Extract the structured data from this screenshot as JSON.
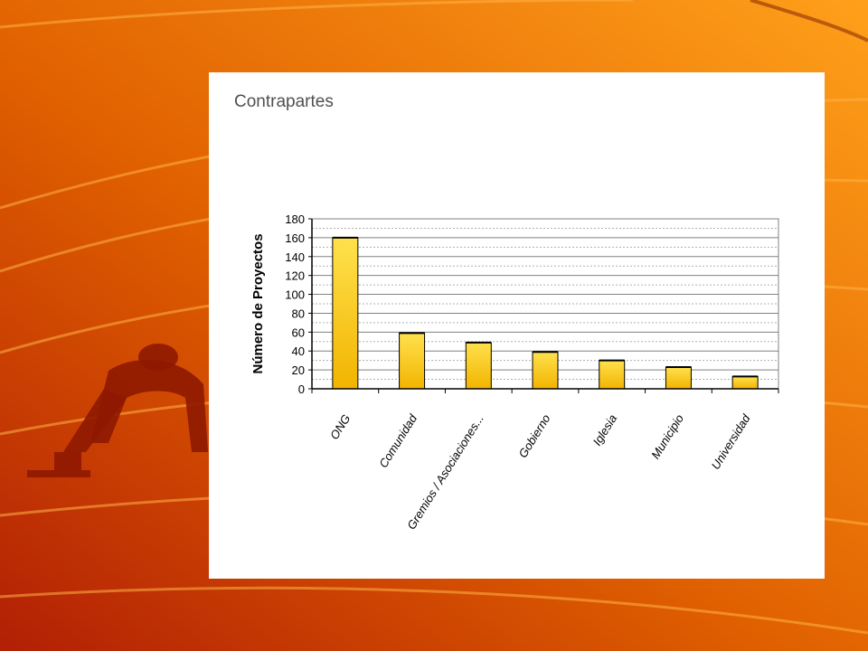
{
  "chart_data": {
    "type": "bar",
    "title": "Contrapartes",
    "xlabel": "",
    "ylabel": "Número de Proyectos",
    "categories": [
      "ONG",
      "Comunidad",
      "Gremios / Asociaciones...",
      "Gobierno",
      "Iglesia",
      "Municipio",
      "Universidad"
    ],
    "values": [
      160,
      59,
      49,
      39,
      30,
      23,
      13
    ],
    "ylim": [
      0,
      180
    ],
    "yticks": [
      0,
      20,
      40,
      60,
      80,
      100,
      120,
      140,
      160,
      180
    ],
    "grid": true,
    "legend": "none",
    "colors": {
      "bar_top": "#ffe14d",
      "bar_bottom": "#f2b400",
      "bar_edge": "#000000",
      "grid": "#808080",
      "plot_border": "#808080"
    }
  },
  "background": {
    "colors": [
      "#b21f05",
      "#e86a00",
      "#ff9d10"
    ],
    "motif": "running-track-lines",
    "figure": "sprinter-silhouette"
  }
}
